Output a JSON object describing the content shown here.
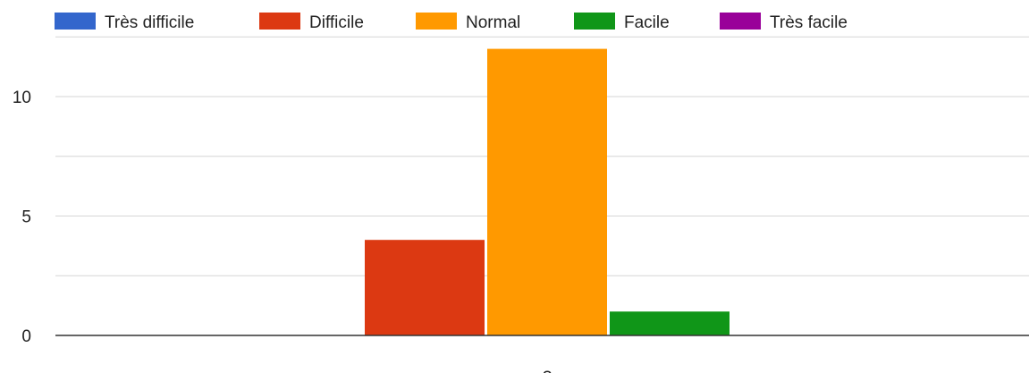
{
  "chart_data": {
    "type": "bar",
    "categories": [
      "?"
    ],
    "series": [
      {
        "name": "Très difficile",
        "color": "#3366cc",
        "values": [
          0
        ]
      },
      {
        "name": "Difficile",
        "color": "#dc3912",
        "values": [
          4
        ]
      },
      {
        "name": "Normal",
        "color": "#ff9900",
        "values": [
          12
        ]
      },
      {
        "name": "Facile",
        "color": "#109618",
        "values": [
          1
        ]
      },
      {
        "name": "Très facile",
        "color": "#990099",
        "values": [
          0
        ]
      }
    ],
    "y_ticks": [
      0,
      5,
      10
    ],
    "ylim": [
      0,
      12.5
    ],
    "grid": true,
    "legend_position": "top"
  }
}
